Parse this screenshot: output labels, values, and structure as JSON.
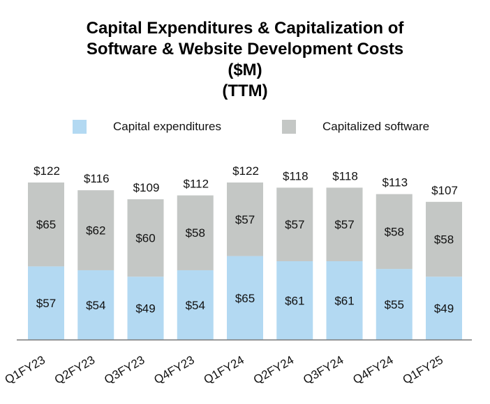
{
  "chart_data": {
    "type": "bar",
    "stacked": true,
    "title_lines": [
      "Capital Expenditures & Capitalization of",
      "Software & Website Development Costs",
      "($M)",
      "(TTM)"
    ],
    "categories": [
      "Q1FY23",
      "Q2FY23",
      "Q3FY23",
      "Q4FY23",
      "Q1FY24",
      "Q2FY24",
      "Q3FY24",
      "Q4FY24",
      "Q1FY25"
    ],
    "series": [
      {
        "name": "Capital expenditures",
        "color": "#b3d9f2",
        "values": [
          57,
          54,
          49,
          54,
          65,
          61,
          61,
          55,
          49
        ],
        "labels": [
          "$57",
          "$54",
          "$49",
          "$54",
          "$65",
          "$61",
          "$61",
          "$55",
          "$49"
        ]
      },
      {
        "name": "Capitalized software",
        "color": "#c4c7c5",
        "values": [
          65,
          62,
          60,
          58,
          57,
          57,
          57,
          58,
          58
        ],
        "labels": [
          "$65",
          "$62",
          "$60",
          "$58",
          "$57",
          "$57",
          "$57",
          "$58",
          "$58"
        ]
      }
    ],
    "totals": [
      122,
      116,
      109,
      112,
      122,
      118,
      118,
      113,
      107
    ],
    "total_labels": [
      "$122",
      "$116",
      "$109",
      "$112",
      "$122",
      "$118",
      "$118",
      "$113",
      "$107"
    ],
    "legend_position": "top",
    "grid": false,
    "ylim": [
      0,
      122
    ],
    "xlabel": "",
    "ylabel": ""
  }
}
